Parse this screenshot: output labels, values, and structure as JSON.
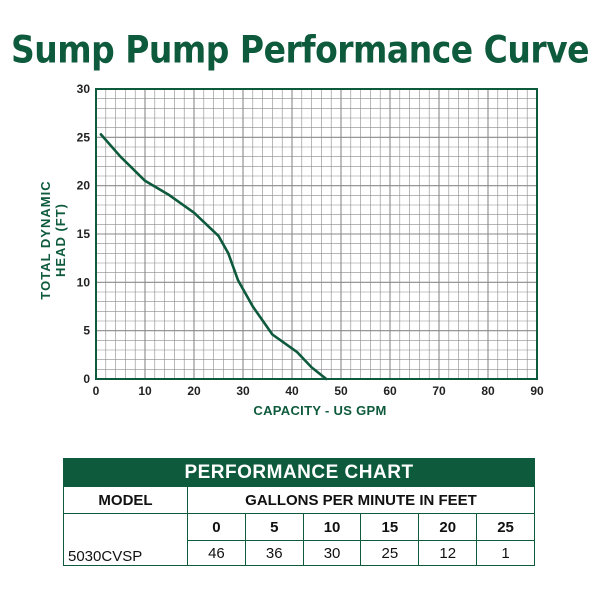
{
  "title": "Sump Pump Performance Curve",
  "chart_data": {
    "type": "line",
    "title": "Sump Pump Performance Curve",
    "xlabel": "CAPACITY - US GPM",
    "ylabel_line1": "TOTAL DYNAMIC",
    "ylabel_line2": "HEAD (FT)",
    "xlim": [
      0,
      90
    ],
    "ylim": [
      0,
      30
    ],
    "x_ticks": [
      0,
      10,
      20,
      30,
      40,
      50,
      60,
      70,
      80,
      90
    ],
    "y_ticks": [
      0,
      5,
      10,
      15,
      20,
      25,
      30
    ],
    "grid": true,
    "colors": {
      "curve": "#0e5a3c",
      "grid": "#8a8a8a",
      "axis": "#0e5a3c"
    },
    "series": [
      {
        "x": [
          1,
          5,
          10,
          15,
          20,
          25,
          27,
          29,
          32,
          36,
          41,
          44,
          47
        ],
        "y": [
          25.3,
          23.0,
          20.5,
          19.0,
          17.2,
          14.8,
          13.0,
          10.2,
          7.5,
          4.6,
          2.8,
          1.2,
          0
        ]
      }
    ]
  },
  "table": {
    "header": "PERFORMANCE CHART",
    "model_label": "MODEL",
    "gpm_label": "GALLONS PER MINUTE IN FEET",
    "columns": [
      "0",
      "5",
      "10",
      "15",
      "20",
      "25"
    ],
    "rows": [
      {
        "model": "5030CVSP",
        "values": [
          "46",
          "36",
          "30",
          "25",
          "12",
          "1"
        ]
      }
    ]
  }
}
